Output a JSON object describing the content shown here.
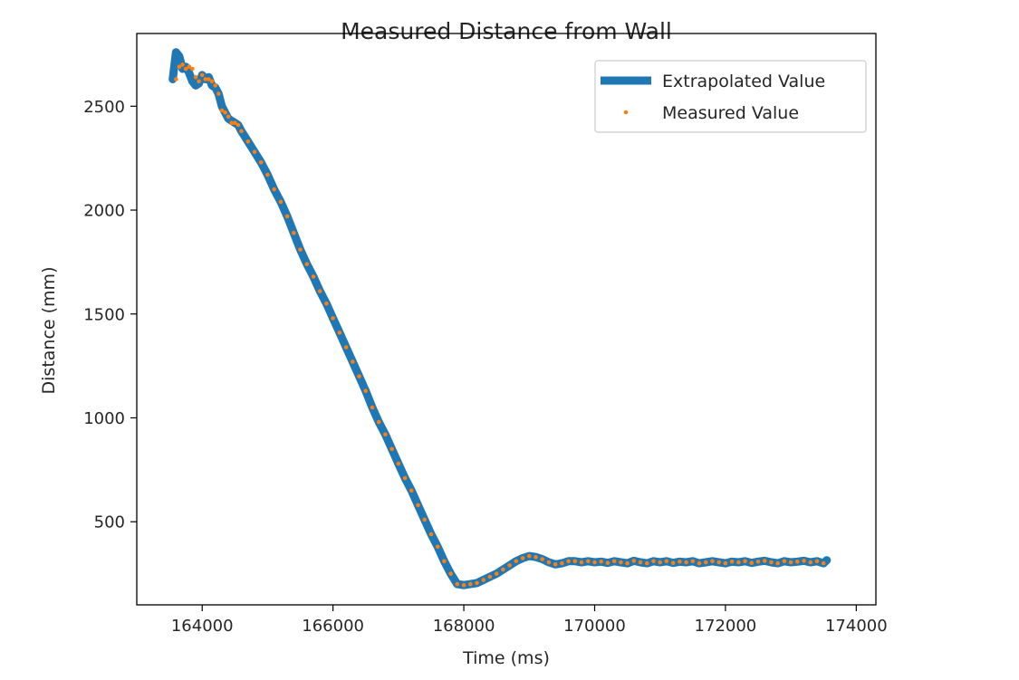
{
  "chart_data": {
    "type": "line",
    "title": "Measured Distance from Wall",
    "xlabel": "Time (ms)",
    "ylabel": "Distance (mm)",
    "xlim": [
      163000,
      174300
    ],
    "ylim": [
      100,
      2850
    ],
    "xticks": [
      164000,
      166000,
      168000,
      170000,
      172000,
      174000
    ],
    "yticks": [
      500,
      1000,
      1500,
      2000,
      2500
    ],
    "grid": false,
    "legend_position": "top-right",
    "series": [
      {
        "name": "Extrapolated Value",
        "style": "line",
        "color": "#1f77b4",
        "x": [
          163550,
          163600,
          163650,
          163700,
          163750,
          163800,
          163850,
          163900,
          163950,
          164000,
          164050,
          164100,
          164150,
          164200,
          164250,
          164300,
          164350,
          164400,
          164450,
          164500,
          164550,
          164600,
          164700,
          164800,
          164900,
          165000,
          165100,
          165200,
          165300,
          165400,
          165500,
          165600,
          165700,
          165800,
          165900,
          166000,
          166100,
          166200,
          166300,
          166400,
          166500,
          166600,
          166700,
          166800,
          166900,
          167000,
          167100,
          167200,
          167300,
          167400,
          167500,
          167600,
          167700,
          167800,
          167900,
          168000,
          168100,
          168200,
          168300,
          168400,
          168500,
          168600,
          168700,
          168800,
          168900,
          169000,
          169100,
          169200,
          169300,
          169400,
          169500,
          169600,
          169700,
          169800,
          169900,
          170000,
          170100,
          170200,
          170300,
          170400,
          170500,
          170600,
          170700,
          170800,
          170900,
          171000,
          171100,
          171200,
          171300,
          171400,
          171500,
          171600,
          171700,
          171800,
          171900,
          172000,
          172100,
          172200,
          172300,
          172400,
          172500,
          172600,
          172700,
          172800,
          172900,
          173000,
          173100,
          173200,
          173300,
          173400,
          173500,
          173550
        ],
        "y": [
          2630,
          2760,
          2740,
          2680,
          2690,
          2660,
          2620,
          2600,
          2610,
          2650,
          2630,
          2640,
          2600,
          2590,
          2560,
          2500,
          2470,
          2440,
          2430,
          2420,
          2410,
          2380,
          2330,
          2280,
          2230,
          2170,
          2100,
          2040,
          1970,
          1890,
          1810,
          1740,
          1680,
          1610,
          1550,
          1480,
          1410,
          1340,
          1270,
          1200,
          1130,
          1050,
          980,
          920,
          850,
          780,
          710,
          650,
          580,
          510,
          440,
          380,
          310,
          250,
          200,
          195,
          200,
          205,
          220,
          235,
          250,
          270,
          290,
          310,
          325,
          335,
          330,
          320,
          305,
          295,
          300,
          310,
          310,
          305,
          310,
          305,
          308,
          302,
          310,
          305,
          300,
          312,
          305,
          300,
          310,
          305,
          310,
          302,
          308,
          305,
          310,
          300,
          305,
          310,
          305,
          300,
          308,
          305,
          310,
          302,
          308,
          312,
          305,
          300,
          310,
          305,
          308,
          312,
          305,
          310,
          300,
          315
        ]
      },
      {
        "name": "Measured Value",
        "style": "points",
        "color": "#ff7f0e",
        "x": [
          163600,
          163650,
          163700,
          163750,
          163800,
          163850,
          163900,
          163950,
          164000,
          164050,
          164100,
          164150,
          164200,
          164250,
          164300,
          164350,
          164400,
          164450,
          164500,
          164550,
          164600,
          164700,
          164800,
          164900,
          165000,
          165100,
          165200,
          165300,
          165400,
          165500,
          165600,
          165700,
          165800,
          165900,
          166000,
          166100,
          166200,
          166300,
          166400,
          166500,
          166600,
          166700,
          166800,
          166900,
          167000,
          167100,
          167200,
          167300,
          167400,
          167500,
          167600,
          167700,
          167800,
          167900,
          168000,
          168100,
          168200,
          168300,
          168400,
          168500,
          168600,
          168700,
          168800,
          168900,
          169000,
          169100,
          169200,
          169300,
          169400,
          169500,
          169600,
          169700,
          169800,
          169900,
          170000,
          170100,
          170200,
          170300,
          170400,
          170500,
          170600,
          170700,
          170800,
          170900,
          171000,
          171100,
          171200,
          171300,
          171400,
          171500,
          171600,
          171700,
          171800,
          171900,
          172000,
          172100,
          172200,
          172300,
          172400,
          172500,
          172600,
          172700,
          172800,
          172900,
          173000,
          173100,
          173200,
          173300,
          173400,
          173500
        ],
        "y": [
          2630,
          2690,
          2700,
          2680,
          2690,
          2680,
          2640,
          2620,
          2650,
          2630,
          2630,
          2620,
          2600,
          2560,
          2480,
          2470,
          2450,
          2420,
          2420,
          2410,
          2380,
          2330,
          2280,
          2230,
          2170,
          2100,
          2040,
          1970,
          1890,
          1810,
          1740,
          1680,
          1610,
          1550,
          1480,
          1410,
          1340,
          1270,
          1200,
          1130,
          1050,
          980,
          920,
          850,
          780,
          710,
          650,
          580,
          510,
          440,
          380,
          310,
          250,
          200,
          195,
          200,
          205,
          220,
          235,
          250,
          270,
          290,
          310,
          325,
          335,
          330,
          320,
          305,
          295,
          300,
          310,
          310,
          305,
          310,
          305,
          308,
          302,
          310,
          305,
          300,
          312,
          305,
          300,
          310,
          305,
          310,
          302,
          308,
          305,
          310,
          300,
          305,
          310,
          305,
          300,
          308,
          305,
          310,
          302,
          308,
          312,
          305,
          300,
          310,
          305,
          308,
          312,
          305,
          310,
          300
        ]
      }
    ]
  }
}
